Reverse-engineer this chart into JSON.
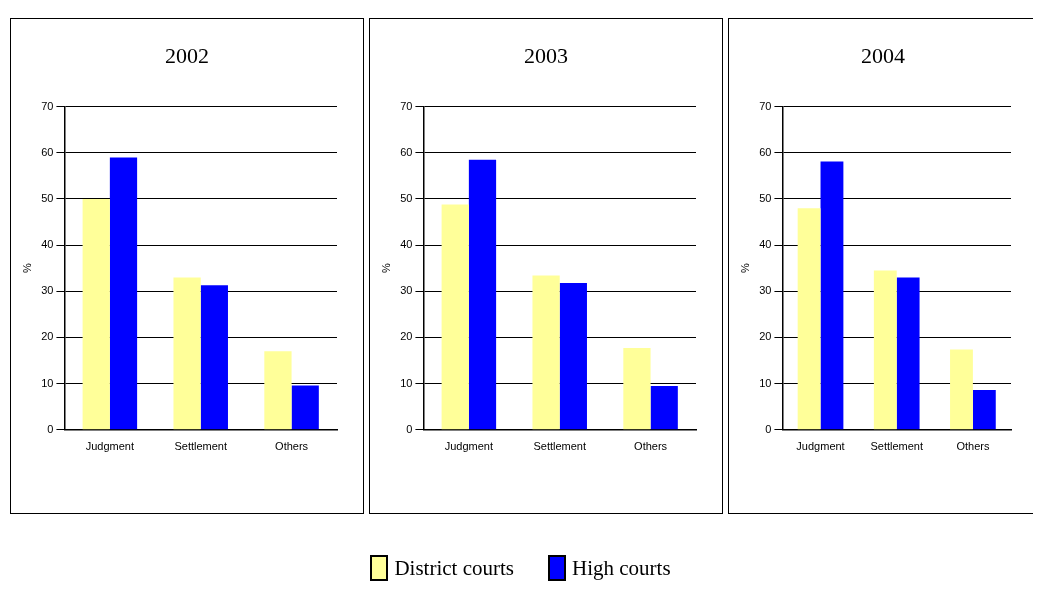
{
  "chart_data": [
    {
      "type": "bar",
      "title": "2002",
      "ylabel": "%",
      "categories": [
        "Judgment",
        "Settlement",
        "Others"
      ],
      "series": [
        {
          "name": "District courts",
          "color": "#ffff99",
          "values": [
            50,
            33,
            17
          ]
        },
        {
          "name": "High courts",
          "color": "#0000ff",
          "values": [
            59,
            31.3,
            9.6
          ]
        }
      ],
      "ylim": [
        0,
        70
      ],
      "yticks": [
        0,
        10,
        20,
        30,
        40,
        50,
        60,
        70
      ],
      "grid": "y",
      "legend": "bottom"
    },
    {
      "type": "bar",
      "title": "2003",
      "ylabel": "%",
      "categories": [
        "Judgment",
        "Settlement",
        "Others"
      ],
      "series": [
        {
          "color": "#ffff99",
          "values": [
            48.8,
            33.4,
            17.7
          ]
        },
        {
          "color": "#0000ff",
          "values": [
            58.5,
            31.8,
            9.5
          ]
        }
      ],
      "ylim": [
        0,
        70
      ],
      "yticks": [
        0,
        10,
        20,
        30,
        40,
        50,
        60,
        70
      ],
      "grid": "y"
    },
    {
      "type": "bar",
      "title": "2004",
      "ylabel": "%",
      "categories": [
        "Judgment",
        "Settlement",
        "Others"
      ],
      "series": [
        {
          "color": "#ffff99",
          "values": [
            48,
            34.5,
            17.4
          ]
        },
        {
          "color": "#0000ff",
          "values": [
            58.1,
            33,
            8.6
          ]
        }
      ],
      "ylim": [
        0,
        70
      ],
      "yticks": [
        0,
        10,
        20,
        30,
        40,
        50,
        60,
        70
      ],
      "grid": "y"
    }
  ]
}
